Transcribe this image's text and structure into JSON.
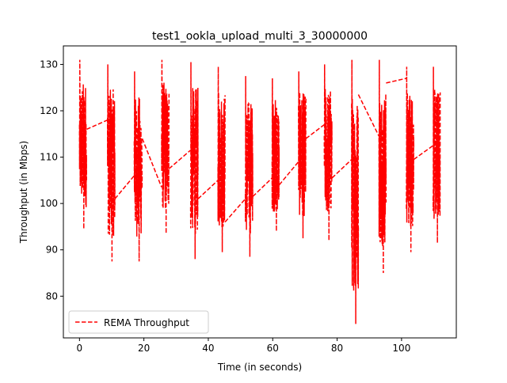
{
  "chart_data": {
    "type": "line",
    "title": "test1_ookla_upload_multi_3_30000000",
    "xlabel": "Time (in seconds)",
    "ylabel": "Throughput (in Mbps)",
    "xlim": [
      -5,
      117
    ],
    "ylim": [
      71,
      134
    ],
    "x_ticks": [
      0,
      20,
      40,
      60,
      80,
      100
    ],
    "y_ticks": [
      80,
      90,
      100,
      110,
      120,
      130
    ],
    "grid": false,
    "legend": {
      "position": "lower-left",
      "entries": [
        "REMA Throughput"
      ]
    },
    "series": [
      {
        "name": "REMA Throughput",
        "color": "#ff0000",
        "line_style": "dashed",
        "bursts": [
          {
            "x_start": 0.0,
            "x_end": 2.2,
            "y_min": 94.5,
            "y_max": 131.0
          },
          {
            "x_start": 8.7,
            "x_end": 11.0,
            "y_min": 87.5,
            "y_max": 130.0
          },
          {
            "x_start": 17.0,
            "x_end": 19.5,
            "y_min": 87.5,
            "y_max": 128.5
          },
          {
            "x_start": 25.5,
            "x_end": 27.8,
            "y_min": 93.5,
            "y_max": 131.0
          },
          {
            "x_start": 34.5,
            "x_end": 36.8,
            "y_min": 88.0,
            "y_max": 130.5
          },
          {
            "x_start": 43.0,
            "x_end": 45.2,
            "y_min": 89.5,
            "y_max": 129.5
          },
          {
            "x_start": 51.5,
            "x_end": 53.8,
            "y_min": 88.5,
            "y_max": 127.5
          },
          {
            "x_start": 59.8,
            "x_end": 62.0,
            "y_min": 94.0,
            "y_max": 127.0
          },
          {
            "x_start": 68.0,
            "x_end": 70.3,
            "y_min": 92.5,
            "y_max": 128.5
          },
          {
            "x_start": 76.0,
            "x_end": 78.4,
            "y_min": 92.0,
            "y_max": 130.0
          },
          {
            "x_start": 84.5,
            "x_end": 86.6,
            "y_min": 74.0,
            "y_max": 131.0
          },
          {
            "x_start": 93.0,
            "x_end": 95.2,
            "y_min": 85.0,
            "y_max": 131.0
          },
          {
            "x_start": 101.5,
            "x_end": 103.8,
            "y_min": 89.5,
            "y_max": 129.5
          },
          {
            "x_start": 109.8,
            "x_end": 112.0,
            "y_min": 91.5,
            "y_max": 129.5
          }
        ],
        "connectors": [
          {
            "x": [
              2.2,
              8.7
            ],
            "y": [
              116.0,
              118.0
            ]
          },
          {
            "x": [
              11.0,
              17.0
            ],
            "y": [
              101.0,
              106.0
            ]
          },
          {
            "x": [
              19.5,
              25.5
            ],
            "y": [
              114.0,
              103.5
            ]
          },
          {
            "x": [
              27.8,
              34.5
            ],
            "y": [
              107.5,
              111.5
            ]
          },
          {
            "x": [
              36.8,
              43.0
            ],
            "y": [
              101.0,
              105.0
            ]
          },
          {
            "x": [
              45.2,
              51.5
            ],
            "y": [
              96.0,
              101.0
            ]
          },
          {
            "x": [
              53.8,
              59.8
            ],
            "y": [
              101.5,
              105.5
            ]
          },
          {
            "x": [
              62.0,
              68.0
            ],
            "y": [
              104.0,
              109.0
            ]
          },
          {
            "x": [
              70.3,
              76.0
            ],
            "y": [
              114.0,
              117.0
            ]
          },
          {
            "x": [
              78.4,
              84.5
            ],
            "y": [
              105.5,
              109.5
            ]
          },
          {
            "x": [
              86.6,
              93.0
            ],
            "y": [
              123.5,
              114.5
            ]
          },
          {
            "x": [
              95.2,
              101.5
            ],
            "y": [
              126.0,
              127.0
            ]
          },
          {
            "x": [
              103.8,
              109.8
            ],
            "y": [
              109.5,
              112.5
            ]
          }
        ]
      }
    ]
  }
}
